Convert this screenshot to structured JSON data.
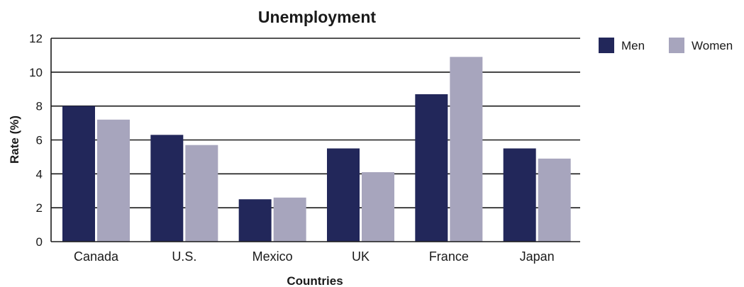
{
  "chart_data": {
    "type": "bar",
    "title": "Unemployment",
    "xlabel": "Countries",
    "ylabel": "Rate (%)",
    "ylim": [
      0,
      12
    ],
    "yticks": [
      0,
      2,
      4,
      6,
      8,
      10,
      12
    ],
    "grid": true,
    "legend": "right",
    "categories": [
      "Canada",
      "U.S.",
      "Mexico",
      "UK",
      "France",
      "Japan"
    ],
    "series": [
      {
        "name": "Men",
        "color": "#22275a",
        "values": [
          8.0,
          6.3,
          2.5,
          5.5,
          8.7,
          5.5
        ]
      },
      {
        "name": "Women",
        "color": "#a7a5bd",
        "values": [
          7.2,
          5.7,
          2.6,
          4.1,
          10.9,
          4.9
        ]
      }
    ]
  }
}
